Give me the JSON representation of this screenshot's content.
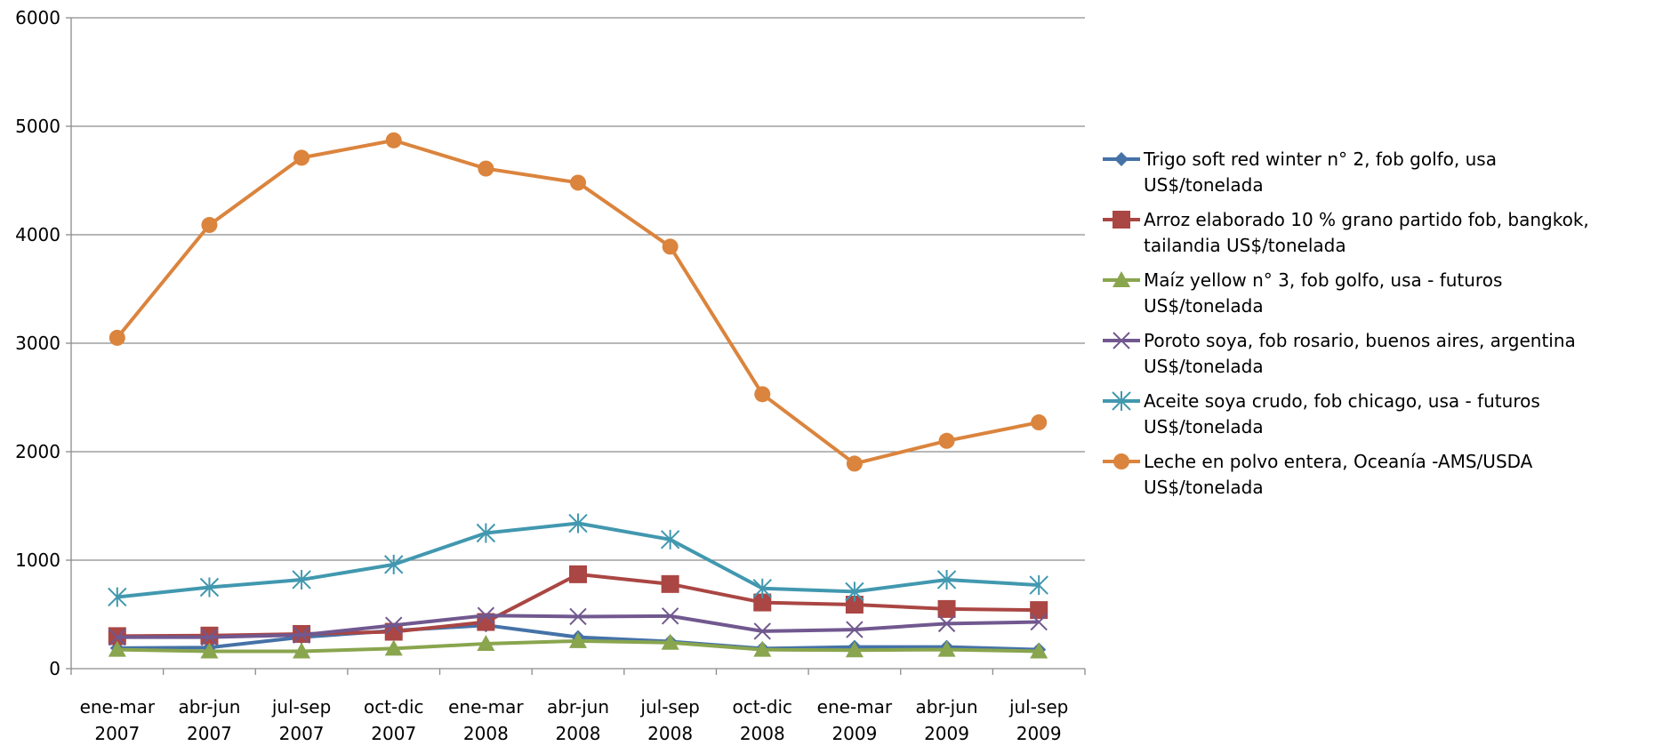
{
  "chart_data": {
    "type": "line",
    "categories": [
      [
        "ene-mar",
        "2007"
      ],
      [
        "abr-jun",
        "2007"
      ],
      [
        "jul-sep",
        "2007"
      ],
      [
        "oct-dic",
        "2007"
      ],
      [
        "ene-mar",
        "2008"
      ],
      [
        "abr-jun",
        "2008"
      ],
      [
        "jul-sep",
        "2008"
      ],
      [
        "oct-dic",
        "2008"
      ],
      [
        "ene-mar",
        "2009"
      ],
      [
        "abr-jun",
        "2009"
      ],
      [
        "jul-sep",
        "2009"
      ]
    ],
    "ylim": [
      0,
      6000
    ],
    "yticks": [
      "0",
      "1000",
      "2000",
      "3000",
      "4000",
      "5000",
      "6000"
    ],
    "grid": true,
    "legend_position": "right",
    "series": [
      {
        "name": [
          "Trigo soft red winter n° 2, fob golfo, usa",
          "US$/tonelada"
        ],
        "color": "#4572A7",
        "marker": "diamond",
        "values": [
          190,
          195,
          290,
          350,
          400,
          290,
          250,
          185,
          200,
          200,
          175
        ]
      },
      {
        "name": [
          "Arroz elaborado 10 % grano partido fob, bangkok,",
          "tailandia US$/tonelada"
        ],
        "color": "#AA4643",
        "marker": "square",
        "values": [
          300,
          305,
          320,
          340,
          430,
          870,
          780,
          610,
          590,
          550,
          540
        ]
      },
      {
        "name": [
          "Maíz yellow n° 3, fob golfo, usa - futuros",
          "US$/tonelada"
        ],
        "color": "#89A54E",
        "marker": "triangle",
        "values": [
          175,
          160,
          160,
          185,
          230,
          255,
          240,
          175,
          170,
          175,
          160
        ]
      },
      {
        "name": [
          "Poroto soya, fob rosario, buenos aires, argentina",
          "US$/tonelada"
        ],
        "color": "#71588F",
        "marker": "x",
        "values": [
          290,
          290,
          310,
          400,
          490,
          480,
          485,
          345,
          360,
          415,
          430
        ]
      },
      {
        "name": [
          "Aceite soya crudo, fob chicago, usa - futuros",
          "US$/tonelada"
        ],
        "color": "#4198AF",
        "marker": "star",
        "values": [
          660,
          750,
          820,
          960,
          1250,
          1340,
          1190,
          740,
          710,
          820,
          770
        ]
      },
      {
        "name": [
          " Leche en polvo entera, Oceanía -AMS/USDA",
          "US$/tonelada"
        ],
        "color": "#DB843D",
        "marker": "circle",
        "values": [
          3050,
          4090,
          4710,
          4870,
          4610,
          4480,
          3890,
          2530,
          1890,
          2100,
          2270
        ]
      }
    ]
  }
}
